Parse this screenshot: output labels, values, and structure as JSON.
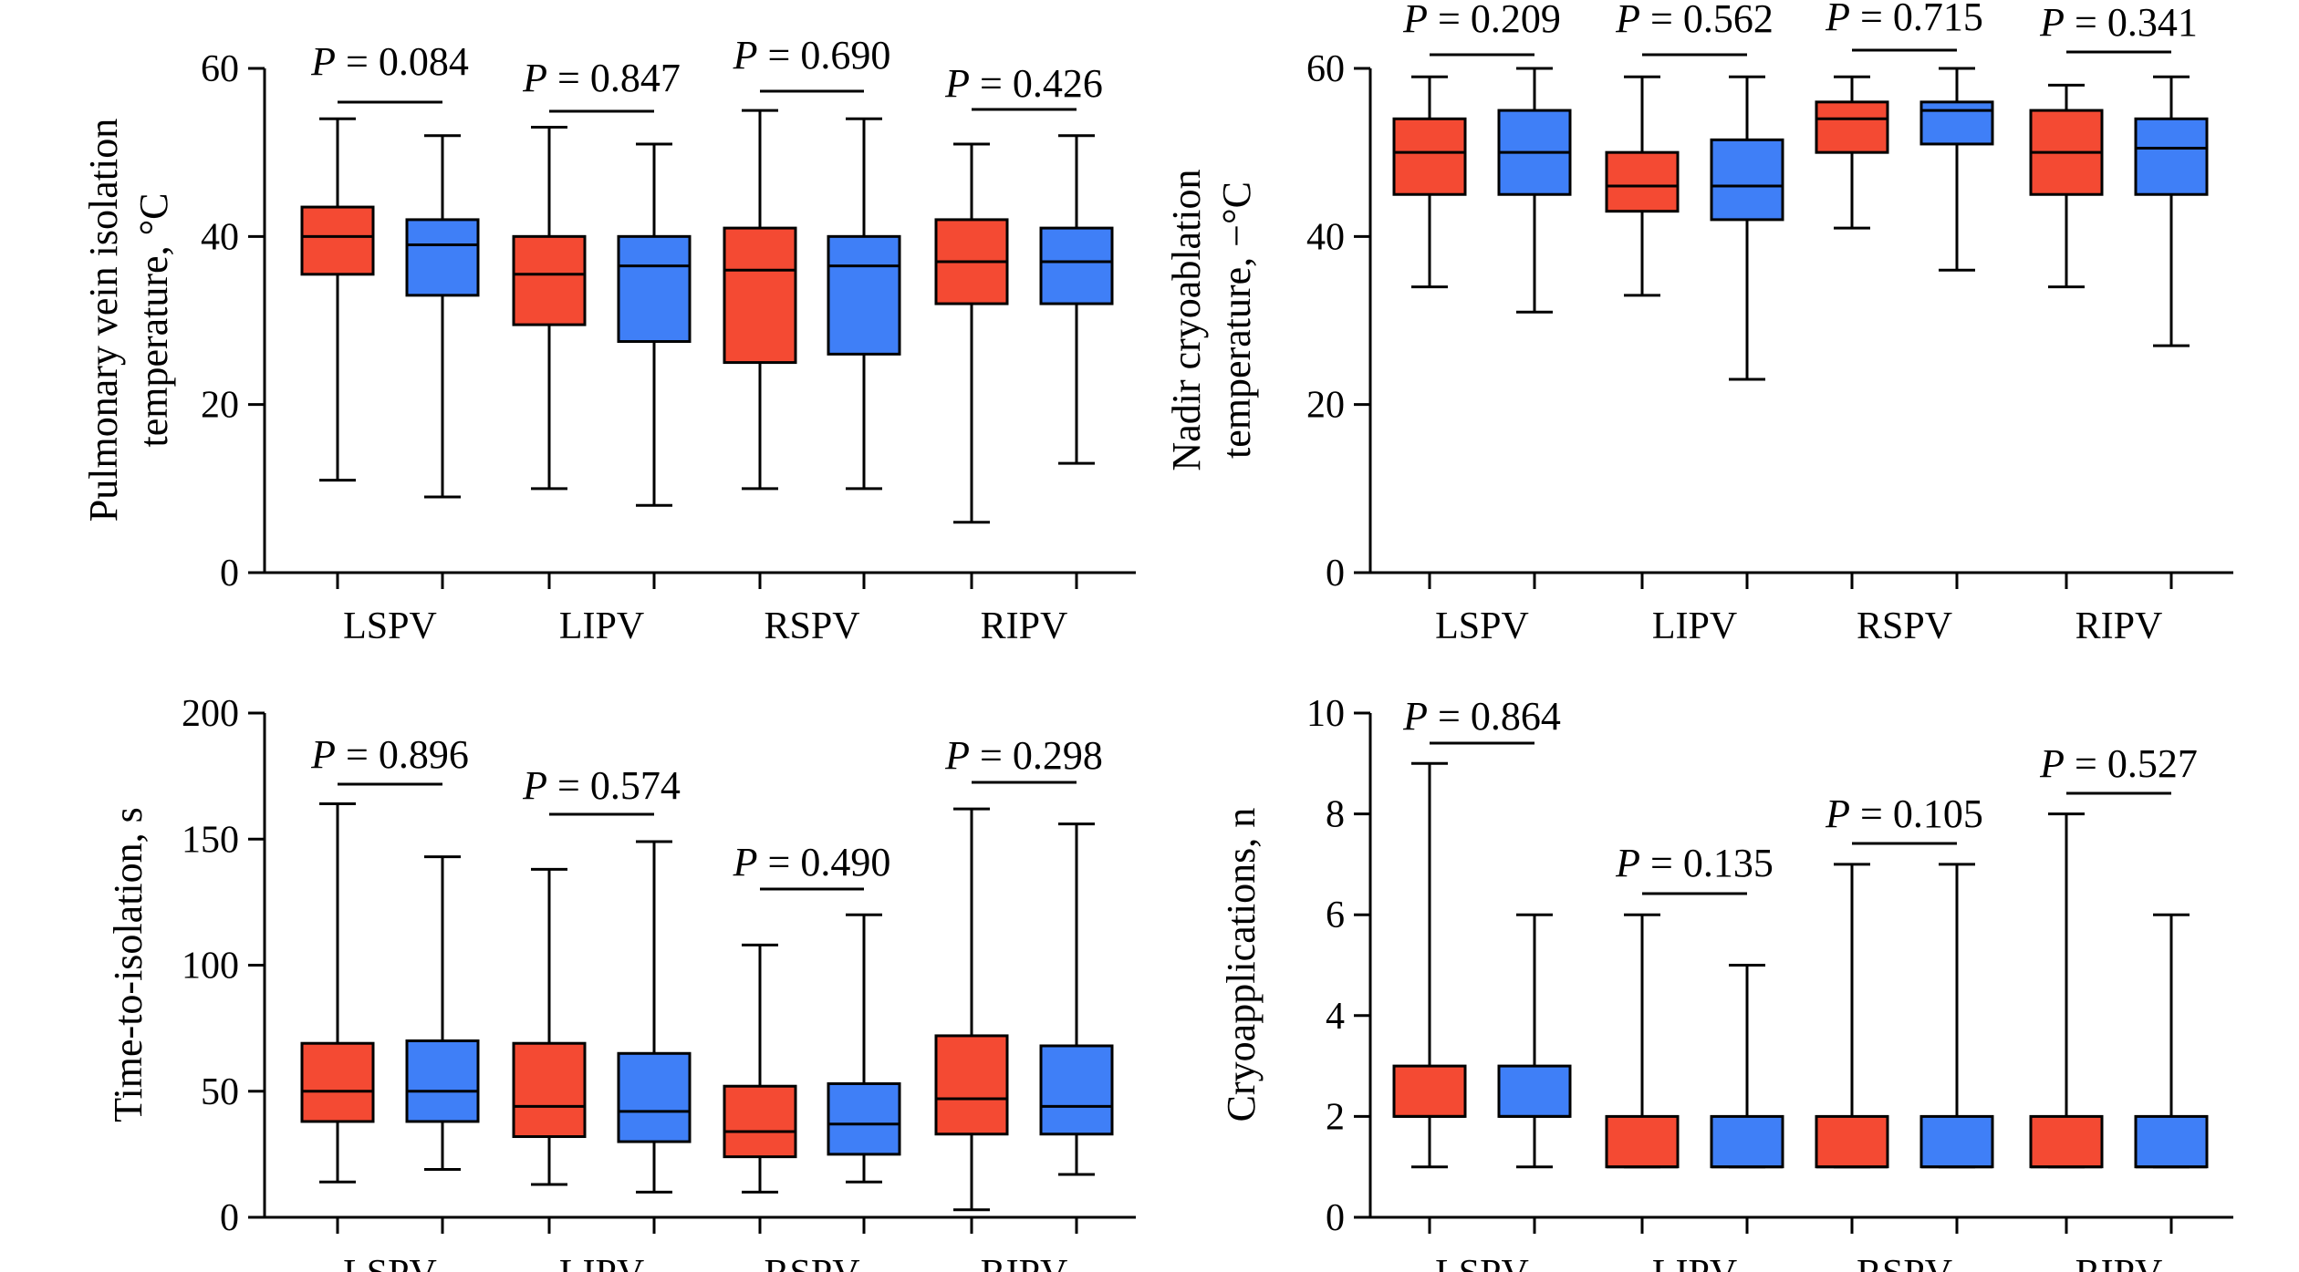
{
  "colors": {
    "group_a": "#f44a33",
    "group_b": "#3f7ff7",
    "stroke": "#000000"
  },
  "chart_data": [
    {
      "type": "boxplot",
      "ylabel": [
        "Pulmonary vein isolation",
        "temperature, °C"
      ],
      "ylim": [
        0,
        60
      ],
      "yticks": [
        "0",
        "20",
        "40",
        "60"
      ],
      "categories": [
        "LSPV",
        "LIPV",
        "RSPV",
        "RIPV"
      ],
      "p_values": [
        "0.084",
        "0.847",
        "0.690",
        "0.426"
      ],
      "boxes": [
        [
          {
            "min": 11,
            "q1": 35.5,
            "median": 40,
            "q3": 43.5,
            "max": 54
          },
          {
            "min": 9,
            "q1": 33,
            "median": 39,
            "q3": 42,
            "max": 52
          }
        ],
        [
          {
            "min": 10,
            "q1": 29.5,
            "median": 35.5,
            "q3": 40,
            "max": 53
          },
          {
            "min": 8,
            "q1": 27.5,
            "median": 36.5,
            "q3": 40,
            "max": 51
          }
        ],
        [
          {
            "min": 10,
            "q1": 25,
            "median": 36,
            "q3": 41,
            "max": 55
          },
          {
            "min": 10,
            "q1": 26,
            "median": 36.5,
            "q3": 40,
            "max": 54
          }
        ],
        [
          {
            "min": 6,
            "q1": 32,
            "median": 37,
            "q3": 42,
            "max": 51
          },
          {
            "min": 13,
            "q1": 32,
            "median": 37,
            "q3": 41,
            "max": 52
          }
        ]
      ]
    },
    {
      "type": "boxplot",
      "ylabel": [
        "Nadir cryoablation",
        "temperature, −°C"
      ],
      "ylim": [
        0,
        60
      ],
      "yticks": [
        "0",
        "20",
        "40",
        "60"
      ],
      "categories": [
        "LSPV",
        "LIPV",
        "RSPV",
        "RIPV"
      ],
      "p_values": [
        "0.209",
        "0.562",
        "0.715",
        "0.341"
      ],
      "boxes": [
        [
          {
            "min": 34,
            "q1": 45,
            "median": 50,
            "q3": 54,
            "max": 59
          },
          {
            "min": 31,
            "q1": 45,
            "median": 50,
            "q3": 55,
            "max": 60
          }
        ],
        [
          {
            "min": 33,
            "q1": 43,
            "median": 46,
            "q3": 50,
            "max": 59
          },
          {
            "min": 23,
            "q1": 42,
            "median": 46,
            "q3": 51.5,
            "max": 59
          }
        ],
        [
          {
            "min": 41,
            "q1": 50,
            "median": 54,
            "q3": 56,
            "max": 59
          },
          {
            "min": 36,
            "q1": 51,
            "median": 55,
            "q3": 56,
            "max": 60
          }
        ],
        [
          {
            "min": 34,
            "q1": 45,
            "median": 50,
            "q3": 55,
            "max": 58
          },
          {
            "min": 27,
            "q1": 45,
            "median": 50.5,
            "q3": 54,
            "max": 59
          }
        ]
      ]
    },
    {
      "type": "boxplot",
      "ylabel": [
        "Time-to-isolation, s"
      ],
      "ylim": [
        0,
        200
      ],
      "yticks": [
        "0",
        "50",
        "100",
        "150",
        "200"
      ],
      "categories": [
        "LSPV",
        "LIPV",
        "RSPV",
        "RIPV"
      ],
      "p_values": [
        "0.896",
        "0.574",
        "0.490",
        "0.298"
      ],
      "boxes": [
        [
          {
            "min": 14,
            "q1": 38,
            "median": 50,
            "q3": 69,
            "max": 164
          },
          {
            "min": 19,
            "q1": 38,
            "median": 50,
            "q3": 70,
            "max": 143
          }
        ],
        [
          {
            "min": 13,
            "q1": 32,
            "median": 44,
            "q3": 69,
            "max": 138
          },
          {
            "min": 10,
            "q1": 30,
            "median": 42,
            "q3": 65,
            "max": 149
          }
        ],
        [
          {
            "min": 10,
            "q1": 24,
            "median": 34,
            "q3": 52,
            "max": 108
          },
          {
            "min": 14,
            "q1": 25,
            "median": 37,
            "q3": 53,
            "max": 120
          }
        ],
        [
          {
            "min": 3,
            "q1": 33,
            "median": 47,
            "q3": 72,
            "max": 162
          },
          {
            "min": 17,
            "q1": 33,
            "median": 44,
            "q3": 68,
            "max": 156
          }
        ]
      ]
    },
    {
      "type": "boxplot",
      "ylabel": [
        "Cryoapplications, n"
      ],
      "ylim": [
        0,
        10
      ],
      "yticks": [
        "0",
        "2",
        "4",
        "6",
        "8",
        "10"
      ],
      "categories": [
        "LSPV",
        "LIPV",
        "RSPV",
        "RIPV"
      ],
      "p_values": [
        "0.864",
        "0.135",
        "0.105",
        "0.527"
      ],
      "boxes": [
        [
          {
            "min": 1,
            "q1": 2,
            "median": 2,
            "q3": 3,
            "max": 9
          },
          {
            "min": 1,
            "q1": 2,
            "median": 2,
            "q3": 3,
            "max": 6
          }
        ],
        [
          {
            "min": 1,
            "q1": 1,
            "median": 1,
            "q3": 2,
            "max": 6
          },
          {
            "min": 1,
            "q1": 1,
            "median": 1,
            "q3": 2,
            "max": 5
          }
        ],
        [
          {
            "min": 1,
            "q1": 1,
            "median": 1,
            "q3": 2,
            "max": 7
          },
          {
            "min": 1,
            "q1": 1,
            "median": 1,
            "q3": 2,
            "max": 7
          }
        ],
        [
          {
            "min": 1,
            "q1": 1,
            "median": 1,
            "q3": 2,
            "max": 8
          },
          {
            "min": 1,
            "q1": 1,
            "median": 1,
            "q3": 2,
            "max": 6
          }
        ]
      ]
    }
  ]
}
